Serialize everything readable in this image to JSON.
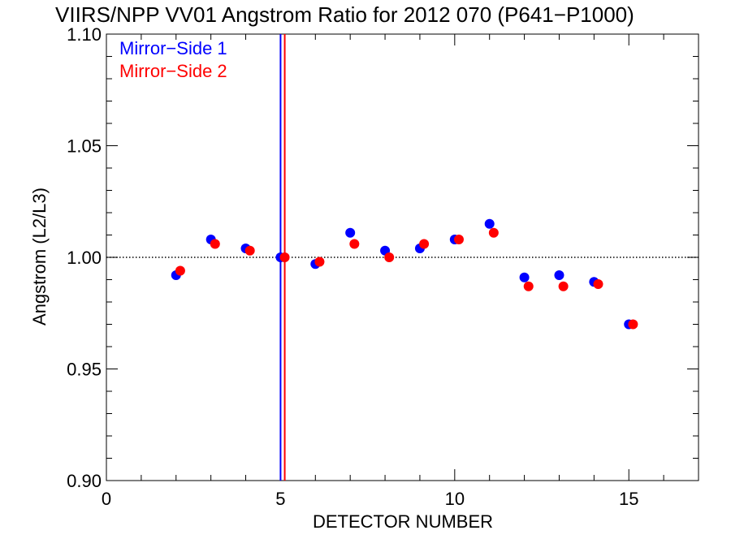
{
  "chart_data": {
    "type": "scatter",
    "title": "VIIRS/NPP VV01 Angstrom Ratio for 2012 070 (P641−P1000)",
    "xlabel": "DETECTOR NUMBER",
    "ylabel": "Angstrom (L2/L3)",
    "xlim": [
      0,
      17
    ],
    "ylim": [
      0.9,
      1.1
    ],
    "x_ticks": [
      0,
      5,
      10,
      15
    ],
    "x_tick_labels": [
      "0",
      "5",
      "10",
      "15"
    ],
    "y_ticks": [
      0.9,
      0.95,
      1.0,
      1.05,
      1.1
    ],
    "y_tick_labels": [
      "0.90",
      "0.95",
      "1.00",
      "1.05",
      "1.10"
    ],
    "reference_line": {
      "y": 1.0,
      "style": "dotted"
    },
    "vertical_lines": [
      {
        "x": 5.0,
        "color": "#0000ff"
      },
      {
        "x": 5.12,
        "color": "#ff0000"
      }
    ],
    "legend": "top-left",
    "series": [
      {
        "name": "Mirror−Side 1",
        "color": "#0000ff",
        "x": [
          2,
          3,
          4,
          5,
          6,
          7,
          8,
          9,
          10,
          11,
          12,
          13,
          14,
          15
        ],
        "y": [
          0.992,
          1.008,
          1.004,
          1.0,
          0.997,
          1.011,
          1.003,
          1.004,
          1.008,
          1.015,
          0.991,
          0.992,
          0.989,
          0.97
        ]
      },
      {
        "name": "Mirror−Side 2",
        "color": "#ff0000",
        "x": [
          2.12,
          3.12,
          4.12,
          5.12,
          6.12,
          7.12,
          8.12,
          9.12,
          10.12,
          11.12,
          12.12,
          13.12,
          14.12,
          15.12
        ],
        "y": [
          0.994,
          1.006,
          1.003,
          1.0,
          0.998,
          1.006,
          1.0,
          1.006,
          1.008,
          1.011,
          0.987,
          0.987,
          0.988,
          0.97
        ]
      }
    ]
  }
}
